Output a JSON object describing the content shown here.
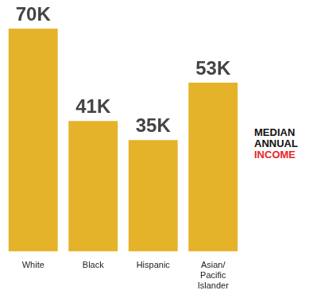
{
  "chart_data": {
    "type": "bar",
    "title": "MEDIAN ANNUAL INCOME",
    "categories": [
      "White",
      "Black",
      "Hispanic",
      "Asian/Pacific Islander"
    ],
    "values": [
      70000,
      41000,
      35000,
      53000
    ],
    "value_labels": [
      "70K",
      "41K",
      "35K",
      "53K"
    ],
    "color": "#e5b32a",
    "ylim": [
      0,
      70000
    ],
    "grid": false,
    "data_labels": true,
    "tick_labels": "x"
  }
}
